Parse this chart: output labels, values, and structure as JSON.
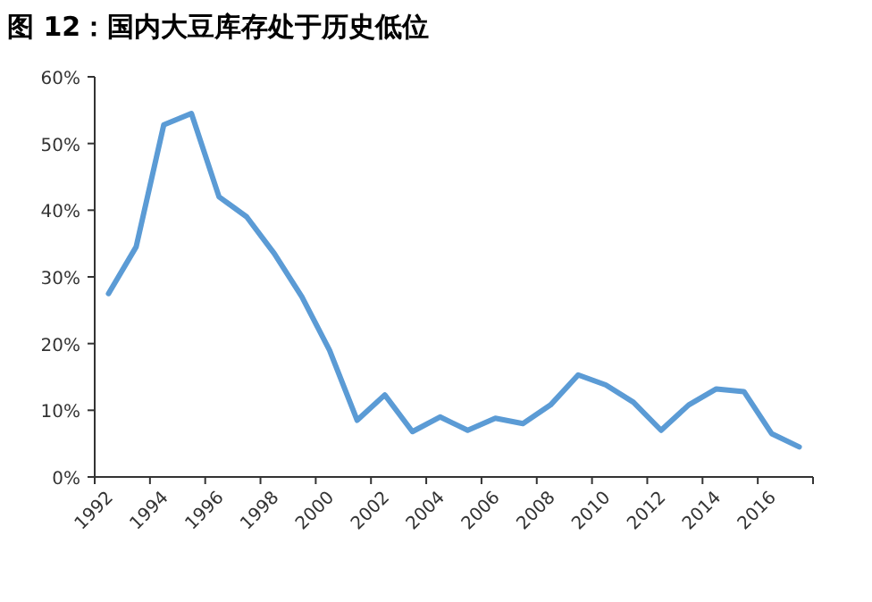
{
  "chart_data": {
    "type": "line",
    "title": "图 12：国内大豆库存处于历史低位",
    "categories": [
      "1992",
      null,
      "1994",
      null,
      "1996",
      null,
      "1998",
      null,
      "2000",
      null,
      "2002",
      null,
      "2004",
      null,
      "2006",
      null,
      "2008",
      null,
      "2010",
      null,
      "2012",
      null,
      "2014",
      null,
      "2016",
      null
    ],
    "series": [
      {
        "color": "#5b9bd5",
        "values": [
          27.5,
          34.5,
          52.8,
          54.5,
          42,
          39,
          33.5,
          27,
          19,
          8.5,
          12.3,
          6.8,
          9,
          7,
          8.8,
          8,
          10.8,
          15.3,
          13.8,
          11.2,
          7,
          10.8,
          13.2,
          12.8,
          6.5,
          4.5
        ]
      }
    ],
    "ylim": [
      0,
      60
    ],
    "yticks": [
      {
        "value": 0,
        "label": "0%"
      },
      {
        "value": 10,
        "label": "10%"
      },
      {
        "value": 20,
        "label": "20%"
      },
      {
        "value": 30,
        "label": "30%"
      },
      {
        "value": 40,
        "label": "40%"
      },
      {
        "value": 50,
        "label": "50%"
      },
      {
        "value": 60,
        "label": "60%"
      }
    ],
    "grid": false,
    "marker": "none",
    "line_style": "solid"
  }
}
